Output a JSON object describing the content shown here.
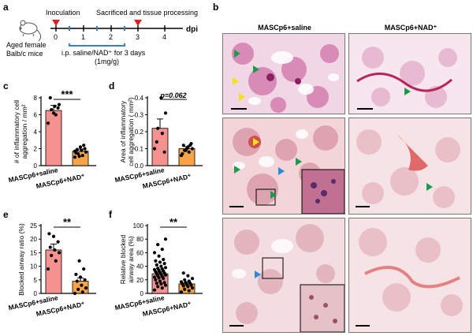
{
  "panels": {
    "a": {
      "label": "a",
      "inoculation": "Inoculation",
      "sacrificed": "Sacrificed and tissue processing",
      "dpi": "dpi",
      "ticks": [
        "0",
        "1",
        "2",
        "3",
        "4"
      ],
      "mouse_line1": "Aged female",
      "mouse_line2": "Balb/c mice",
      "treatment_line1": "i.p. saline/NAD⁺ for 3 days",
      "treatment_line2": "(1mg/g)"
    },
    "b": {
      "label": "b",
      "col1": "MASCp6+saline",
      "col2": "MASCp6+NAD⁺"
    },
    "c": {
      "label": "c"
    },
    "d": {
      "label": "d"
    },
    "e": {
      "label": "e"
    },
    "f": {
      "label": "f"
    }
  },
  "colors": {
    "saline_bar": "#f4928f",
    "nad_bar": "#f7a448",
    "timeline_red": "#e02020",
    "timeline_blue": "#3a7fc4",
    "arrow_green": "#1a9a4a",
    "arrow_yellow": "#f2e21a",
    "arrow_blue": "#2a8ad8"
  },
  "chart_data": [
    {
      "id": "c",
      "type": "bar",
      "categories": [
        "MASCp6+saline",
        "MASCp6+NAD⁺"
      ],
      "values": [
        6.5,
        1.7
      ],
      "errors": [
        0.6,
        0.25
      ],
      "ylabel_line1": "# of inflammatory cell",
      "ylabel_line2": "aggregation / mm²",
      "yticks": [
        0,
        2,
        4,
        6,
        8
      ],
      "ylim": [
        0,
        8
      ],
      "significance": "***",
      "points": [
        [
          5.0,
          6.0,
          6.6,
          7.2,
          7.0,
          8.2,
          6.8,
          6.2
        ],
        [
          1.0,
          1.2,
          1.4,
          1.6,
          1.8,
          1.9,
          2.0,
          2.2,
          1.5,
          2.4,
          1.1,
          1.7
        ]
      ]
    },
    {
      "id": "d",
      "type": "bar",
      "categories": [
        "MASCp6+saline",
        "MASCp6+NAD⁺"
      ],
      "values": [
        0.22,
        0.1
      ],
      "errors": [
        0.055,
        0.012
      ],
      "ylabel_line1": "Area of inflammatory",
      "ylabel_line2": "cell aggregation ( mm²)",
      "yticks": [
        "0.0",
        "0.1",
        "0.2",
        "0.3",
        "0.4"
      ],
      "ylim": [
        0,
        0.4
      ],
      "significance": "p=0.062",
      "points": [
        [
          0.1,
          0.19,
          0.22,
          0.31,
          0.43,
          0.14,
          0.08
        ],
        [
          0.06,
          0.08,
          0.09,
          0.1,
          0.11,
          0.12,
          0.13,
          0.1,
          0.07,
          0.12,
          0.09
        ]
      ]
    },
    {
      "id": "e",
      "type": "bar",
      "categories": [
        "MASCp6+saline",
        "MASCp6+NAD⁺"
      ],
      "values": [
        16,
        4.5
      ],
      "errors": [
        2.2,
        1.2
      ],
      "ylabel_line1": "Blocked airway ratio (%)",
      "ylabel_line2": "",
      "yticks": [
        0,
        5,
        10,
        15,
        20,
        25
      ],
      "ylim": [
        0,
        25
      ],
      "significance": "**",
      "points": [
        [
          9,
          12,
          14,
          15,
          16,
          17,
          19,
          21,
          22
        ],
        [
          0,
          0.5,
          1.5,
          2,
          3,
          4.5,
          5,
          6,
          7,
          9,
          12
        ]
      ]
    },
    {
      "id": "f",
      "type": "bar",
      "categories": [
        "MASCp6+saline",
        "MASCp6+NAD⁺"
      ],
      "values": [
        29,
        14
      ],
      "errors": [
        2.5,
        2.0
      ],
      "ylabel_line1": "Relative blocked",
      "ylabel_line2": "airway area (%)",
      "yticks": [
        0,
        20,
        40,
        60,
        80,
        100
      ],
      "ylim": [
        0,
        100
      ],
      "significance": "**",
      "points": [
        [
          5,
          8,
          10,
          12,
          14,
          15,
          16,
          18,
          20,
          22,
          23,
          24,
          25,
          26,
          27,
          28,
          29,
          30,
          31,
          32,
          33,
          34,
          35,
          36,
          37,
          38,
          40,
          42,
          44,
          46,
          48,
          50,
          55,
          60,
          65,
          72,
          80
        ],
        [
          2,
          4,
          6,
          8,
          10,
          11,
          12,
          13,
          14,
          15,
          16,
          17,
          18,
          20,
          22,
          26,
          30
        ]
      ]
    }
  ]
}
